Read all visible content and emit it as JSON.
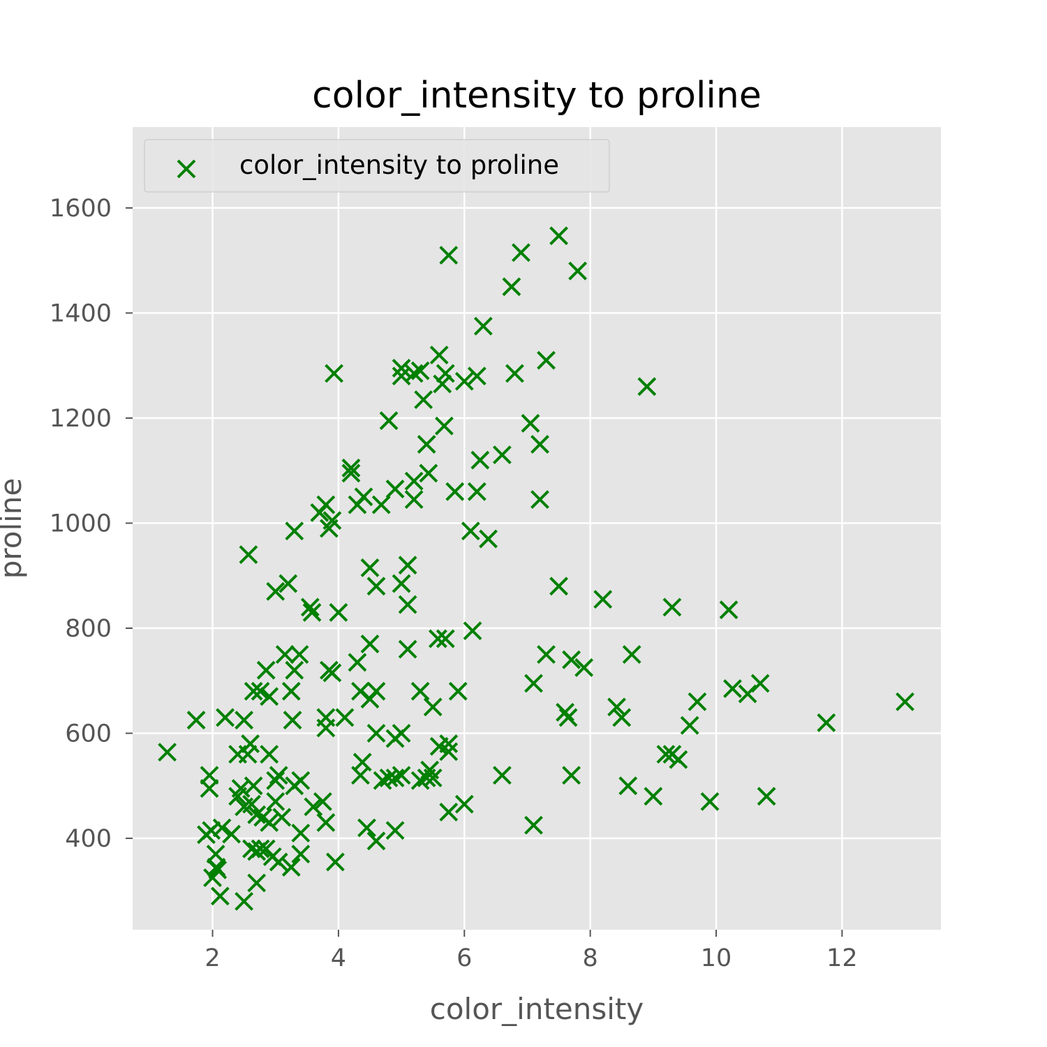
{
  "chart_data": {
    "type": "scatter",
    "title": "color_intensity to proline",
    "xlabel": "color_intensity",
    "ylabel": "proline",
    "xlim": [
      0.73,
      13.57
    ],
    "ylim": [
      226,
      1754
    ],
    "xticks": [
      "2",
      "4",
      "6",
      "8",
      "10",
      "12"
    ],
    "yticks": [
      "400",
      "600",
      "800",
      "1000",
      "1200",
      "1400",
      "1600"
    ],
    "xtick_values": [
      2,
      4,
      6,
      8,
      10,
      12
    ],
    "ytick_values": [
      400,
      600,
      800,
      1000,
      1200,
      1400,
      1600
    ],
    "grid": true,
    "legend_position": "upper-left",
    "marker": "x",
    "color": "#008000",
    "background": "#E5E5E5",
    "series": [
      {
        "name": "color_intensity to proline",
        "points": [
          [
            1.28,
            564
          ],
          [
            1.74,
            625
          ],
          [
            1.9,
            407
          ],
          [
            1.95,
            520
          ],
          [
            1.95,
            495
          ],
          [
            1.98,
            415
          ],
          [
            2.0,
            325
          ],
          [
            2.05,
            370
          ],
          [
            2.06,
            345
          ],
          [
            2.08,
            340
          ],
          [
            2.12,
            290
          ],
          [
            2.15,
            420
          ],
          [
            2.2,
            630
          ],
          [
            2.3,
            408
          ],
          [
            2.4,
            480
          ],
          [
            2.4,
            560
          ],
          [
            2.45,
            495
          ],
          [
            2.5,
            625
          ],
          [
            2.5,
            280
          ],
          [
            2.57,
            940
          ],
          [
            2.5,
            460
          ],
          [
            2.56,
            560
          ],
          [
            2.6,
            580
          ],
          [
            2.62,
            380
          ],
          [
            2.62,
            465
          ],
          [
            2.65,
            500
          ],
          [
            2.65,
            680
          ],
          [
            2.7,
            445
          ],
          [
            2.7,
            315
          ],
          [
            2.7,
            375
          ],
          [
            2.76,
            680
          ],
          [
            2.76,
            380
          ],
          [
            2.8,
            440
          ],
          [
            2.85,
            720
          ],
          [
            2.85,
            380
          ],
          [
            2.9,
            560
          ],
          [
            2.9,
            670
          ],
          [
            2.9,
            430
          ],
          [
            2.95,
            365
          ],
          [
            3.0,
            510
          ],
          [
            3.0,
            870
          ],
          [
            3.0,
            470
          ],
          [
            3.05,
            355
          ],
          [
            3.05,
            520
          ],
          [
            3.1,
            440
          ],
          [
            3.15,
            750
          ],
          [
            3.2,
            885
          ],
          [
            3.25,
            345
          ],
          [
            3.25,
            680
          ],
          [
            3.27,
            625
          ],
          [
            3.3,
            985
          ],
          [
            3.3,
            720
          ],
          [
            3.3,
            500
          ],
          [
            3.38,
            750
          ],
          [
            3.4,
            510
          ],
          [
            3.4,
            370
          ],
          [
            3.4,
            410
          ],
          [
            3.55,
            840
          ],
          [
            3.58,
            830
          ],
          [
            3.6,
            460
          ],
          [
            3.7,
            1020
          ],
          [
            3.75,
            470
          ],
          [
            3.8,
            630
          ],
          [
            3.8,
            610
          ],
          [
            3.8,
            430
          ],
          [
            3.8,
            1035
          ],
          [
            3.85,
            720
          ],
          [
            3.85,
            990
          ],
          [
            3.9,
            1005
          ],
          [
            3.9,
            715
          ],
          [
            3.93,
            1285
          ],
          [
            3.95,
            355
          ],
          [
            4.0,
            830
          ],
          [
            4.1,
            630
          ],
          [
            4.2,
            1105
          ],
          [
            4.2,
            1095
          ],
          [
            4.3,
            1035
          ],
          [
            4.3,
            735
          ],
          [
            4.35,
            520
          ],
          [
            4.35,
            680
          ],
          [
            4.38,
            545
          ],
          [
            4.4,
            1050
          ],
          [
            4.45,
            420
          ],
          [
            4.5,
            915
          ],
          [
            4.5,
            770
          ],
          [
            4.5,
            665
          ],
          [
            4.6,
            680
          ],
          [
            4.6,
            395
          ],
          [
            4.6,
            600
          ],
          [
            4.6,
            880
          ],
          [
            4.68,
            1035
          ],
          [
            4.7,
            510
          ],
          [
            4.8,
            1195
          ],
          [
            4.8,
            515
          ],
          [
            4.9,
            1065
          ],
          [
            4.9,
            515
          ],
          [
            4.9,
            415
          ],
          [
            4.9,
            590
          ],
          [
            5.0,
            600
          ],
          [
            5.0,
            520
          ],
          [
            5.0,
            1280
          ],
          [
            5.0,
            1295
          ],
          [
            5.0,
            885
          ],
          [
            5.1,
            920
          ],
          [
            5.1,
            845
          ],
          [
            5.1,
            760
          ],
          [
            5.2,
            1285
          ],
          [
            5.2,
            1045
          ],
          [
            5.2,
            1080
          ],
          [
            5.3,
            680
          ],
          [
            5.3,
            510
          ],
          [
            5.3,
            1290
          ],
          [
            5.35,
            1235
          ],
          [
            5.4,
            1150
          ],
          [
            5.4,
            515
          ],
          [
            5.43,
            1095
          ],
          [
            5.45,
            530
          ],
          [
            5.5,
            650
          ],
          [
            5.5,
            515
          ],
          [
            5.58,
            780
          ],
          [
            5.6,
            1320
          ],
          [
            5.6,
            575
          ],
          [
            5.65,
            1265
          ],
          [
            5.68,
            1185
          ],
          [
            5.7,
            780
          ],
          [
            5.7,
            1285
          ],
          [
            5.75,
            565
          ],
          [
            5.75,
            1510
          ],
          [
            5.75,
            580
          ],
          [
            5.75,
            450
          ],
          [
            5.85,
            1060
          ],
          [
            5.9,
            680
          ],
          [
            6.0,
            1270
          ],
          [
            6.0,
            465
          ],
          [
            6.1,
            985
          ],
          [
            6.13,
            795
          ],
          [
            6.2,
            1280
          ],
          [
            6.2,
            1060
          ],
          [
            6.25,
            1120
          ],
          [
            6.3,
            1375
          ],
          [
            6.38,
            970
          ],
          [
            6.6,
            520
          ],
          [
            6.6,
            1130
          ],
          [
            6.75,
            1450
          ],
          [
            6.8,
            1285
          ],
          [
            6.9,
            1515
          ],
          [
            7.05,
            1190
          ],
          [
            7.1,
            695
          ],
          [
            7.1,
            425
          ],
          [
            7.2,
            1150
          ],
          [
            7.2,
            1045
          ],
          [
            7.3,
            1310
          ],
          [
            7.3,
            750
          ],
          [
            7.5,
            1547
          ],
          [
            7.5,
            880
          ],
          [
            7.6,
            640
          ],
          [
            7.65,
            630
          ],
          [
            7.7,
            520
          ],
          [
            7.7,
            740
          ],
          [
            7.8,
            1480
          ],
          [
            7.9,
            725
          ],
          [
            8.2,
            855
          ],
          [
            8.42,
            650
          ],
          [
            8.5,
            630
          ],
          [
            8.6,
            500
          ],
          [
            8.66,
            750
          ],
          [
            8.9,
            1260
          ],
          [
            9.0,
            480
          ],
          [
            9.2,
            560
          ],
          [
            9.3,
            840
          ],
          [
            9.3,
            560
          ],
          [
            9.4,
            550
          ],
          [
            9.58,
            615
          ],
          [
            9.7,
            660
          ],
          [
            9.9,
            470
          ],
          [
            10.2,
            835
          ],
          [
            10.26,
            685
          ],
          [
            10.5,
            675
          ],
          [
            10.7,
            695
          ],
          [
            10.8,
            480
          ],
          [
            11.75,
            620
          ],
          [
            13.0,
            660
          ]
        ]
      }
    ]
  }
}
